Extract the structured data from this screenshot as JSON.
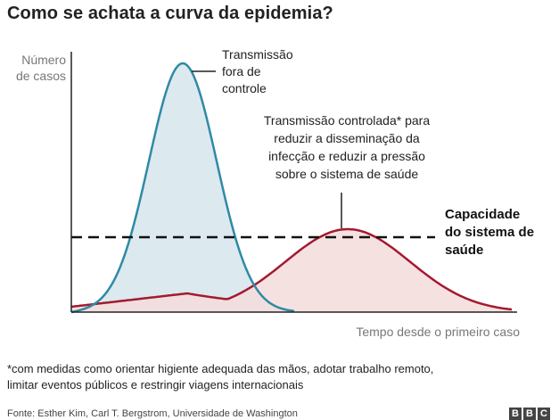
{
  "title": "Como se achata a curva da epidemia?",
  "chart_data": {
    "type": "area",
    "ylabel": [
      "Número",
      "de casos"
    ],
    "xlabel": "Tempo desde o primeiro caso",
    "series": [
      {
        "name": "Transmissão fora de controle",
        "label_lines": [
          "Transmissão",
          "fora de",
          "controle"
        ],
        "peak": 0.93,
        "color": "#2e8aa6",
        "fill": "#dce9ef"
      },
      {
        "name": "Transmissão controlada",
        "label_lines": [
          "Transmissão controlada* para",
          "reduzir a disseminação da",
          "infecção e reduzir a pressão",
          "sobre o sistema de saúde"
        ],
        "peak": 0.31,
        "color": "#a31a30",
        "fill": "#f5dcdc"
      }
    ],
    "capacity": {
      "value": 0.28,
      "label_lines": [
        "Capacidade",
        "do sistema de",
        "saúde"
      ]
    },
    "ylim": [
      0,
      1
    ],
    "grid": false
  },
  "footnote": [
    "*com medidas como orientar higiente adequada das mãos, adotar trabalho remoto,",
    "limitar eventos públicos e restringir viagens internacionais"
  ],
  "source": "Fonte: Esther Kim, Carl T. Bergstrom, Universidade de Washington",
  "logo": [
    "B",
    "B",
    "C"
  ]
}
